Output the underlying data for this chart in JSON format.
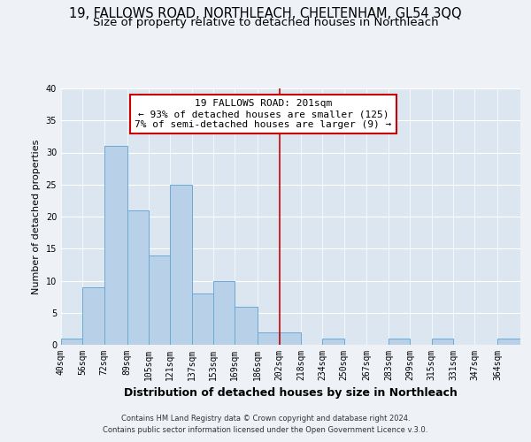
{
  "title": "19, FALLOWS ROAD, NORTHLEACH, CHELTENHAM, GL54 3QQ",
  "subtitle": "Size of property relative to detached houses in Northleach",
  "xlabel": "Distribution of detached houses by size in Northleach",
  "ylabel": "Number of detached properties",
  "footer_line1": "Contains HM Land Registry data © Crown copyright and database right 2024.",
  "footer_line2": "Contains public sector information licensed under the Open Government Licence v.3.0.",
  "bin_labels": [
    "40sqm",
    "56sqm",
    "72sqm",
    "89sqm",
    "105sqm",
    "121sqm",
    "137sqm",
    "153sqm",
    "169sqm",
    "186sqm",
    "202sqm",
    "218sqm",
    "234sqm",
    "250sqm",
    "267sqm",
    "283sqm",
    "299sqm",
    "315sqm",
    "331sqm",
    "347sqm",
    "364sqm"
  ],
  "bin_edges": [
    40,
    56,
    72,
    89,
    105,
    121,
    137,
    153,
    169,
    186,
    202,
    218,
    234,
    250,
    267,
    283,
    299,
    315,
    331,
    347,
    364
  ],
  "bin_counts": [
    1,
    9,
    31,
    21,
    14,
    25,
    8,
    10,
    6,
    2,
    2,
    0,
    1,
    0,
    0,
    1,
    0,
    1,
    0,
    0,
    1
  ],
  "bar_color": "#b8d0e8",
  "bar_edge_color": "#6aaad4",
  "vline_color": "#cc0000",
  "vline_x": 202,
  "annotation_title": "19 FALLOWS ROAD: 201sqm",
  "annotation_line1": "← 93% of detached houses are smaller (125)",
  "annotation_line2": "7% of semi-detached houses are larger (9) →",
  "annotation_box_edgecolor": "#cc0000",
  "annotation_box_facecolor": "#ffffff",
  "background_color": "#eef2f7",
  "plot_background_color": "#dce6f0",
  "ylim": [
    0,
    40
  ],
  "yticks": [
    0,
    5,
    10,
    15,
    20,
    25,
    30,
    35,
    40
  ],
  "grid_color": "#ffffff",
  "title_fontsize": 10.5,
  "subtitle_fontsize": 9.5,
  "xlabel_fontsize": 9,
  "ylabel_fontsize": 8,
  "tick_fontsize": 7,
  "annotation_fontsize": 8,
  "footer_fontsize": 6
}
